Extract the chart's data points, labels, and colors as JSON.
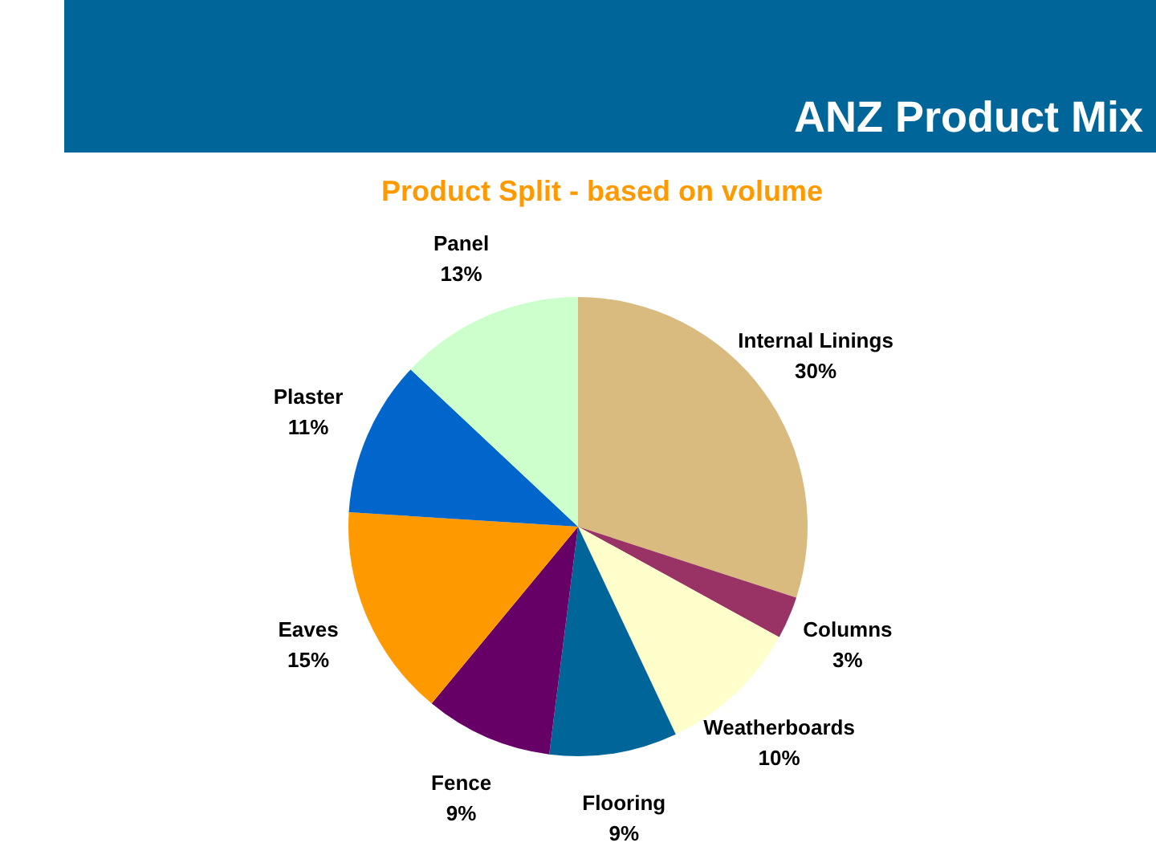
{
  "chart_data": {
    "type": "pie",
    "title": "ANZ Product Mix",
    "subtitle": "Product Split - based on volume",
    "categories": [
      "Internal Linings",
      "Columns",
      "Weatherboards",
      "Flooring",
      "Fence",
      "Eaves",
      "Plaster",
      "Panel"
    ],
    "values": [
      30,
      3,
      10,
      9,
      9,
      15,
      11,
      13
    ],
    "colors": [
      "#d9bb80",
      "#993366",
      "#ffffcc",
      "#006699",
      "#660066",
      "#ff9900",
      "#0066cc",
      "#ccffcc"
    ],
    "value_labels": [
      "30%",
      "3%",
      "10%",
      "9%",
      "9%",
      "15%",
      "11%",
      "13%"
    ]
  }
}
